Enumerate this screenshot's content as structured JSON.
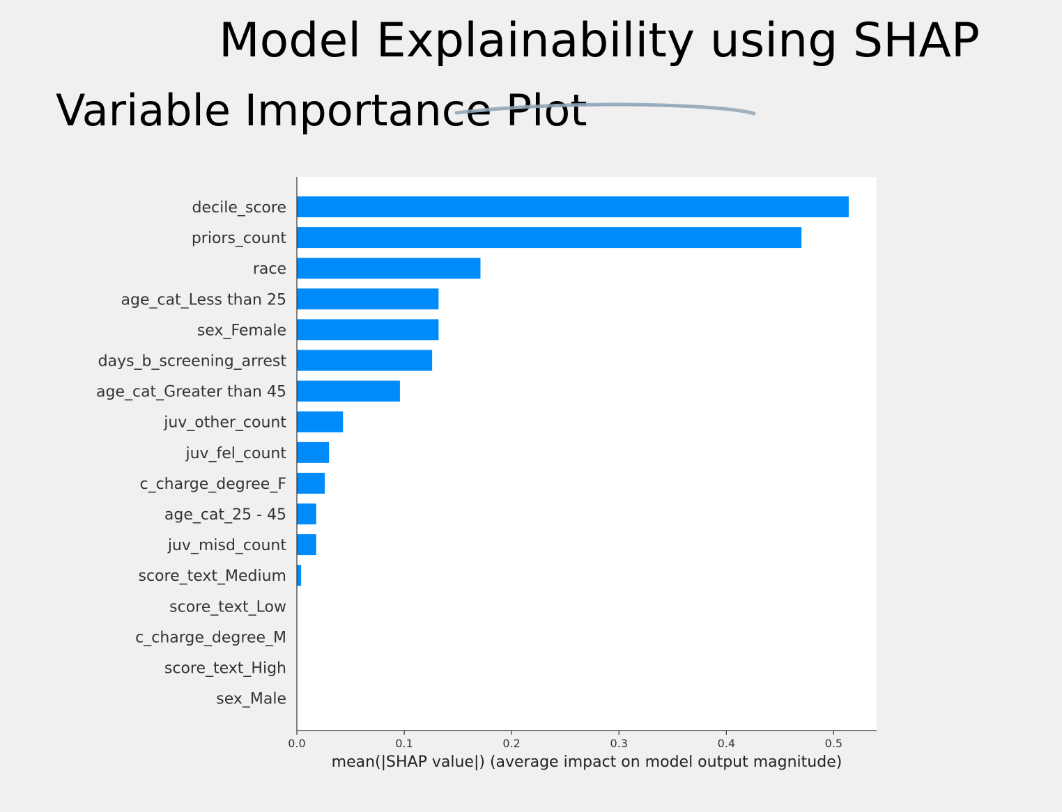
{
  "slide": {
    "title": "Model Explainability using SHAP",
    "subtitle": "Variable Importance Plot"
  },
  "colors": {
    "background": "#f0f0f0",
    "bar": "#008bfb",
    "decoration": "#8fa3b5"
  },
  "chart_data": {
    "type": "bar",
    "orientation": "horizontal",
    "categories": [
      "decile_score",
      "priors_count",
      "race",
      "age_cat_Less than 25",
      "sex_Female",
      "days_b_screening_arrest",
      "age_cat_Greater than 45",
      "juv_other_count",
      "juv_fel_count",
      "c_charge_degree_F",
      "age_cat_25 - 45",
      "juv_misd_count",
      "score_text_Medium",
      "score_text_Low",
      "c_charge_degree_M",
      "score_text_High",
      "sex_Male"
    ],
    "values": [
      0.514,
      0.47,
      0.171,
      0.132,
      0.132,
      0.126,
      0.096,
      0.043,
      0.03,
      0.026,
      0.018,
      0.018,
      0.004,
      0,
      0,
      0,
      0
    ],
    "xlabel": "mean(|SHAP value|) (average impact on model output magnitude)",
    "ylabel": "",
    "xlim": [
      0,
      0.54
    ],
    "xticks": [
      0.0,
      0.1,
      0.2,
      0.3,
      0.4,
      0.5
    ],
    "xtick_labels": [
      "0.0",
      "0.1",
      "0.2",
      "0.3",
      "0.4",
      "0.5"
    ],
    "grid": false,
    "legend": "none"
  }
}
